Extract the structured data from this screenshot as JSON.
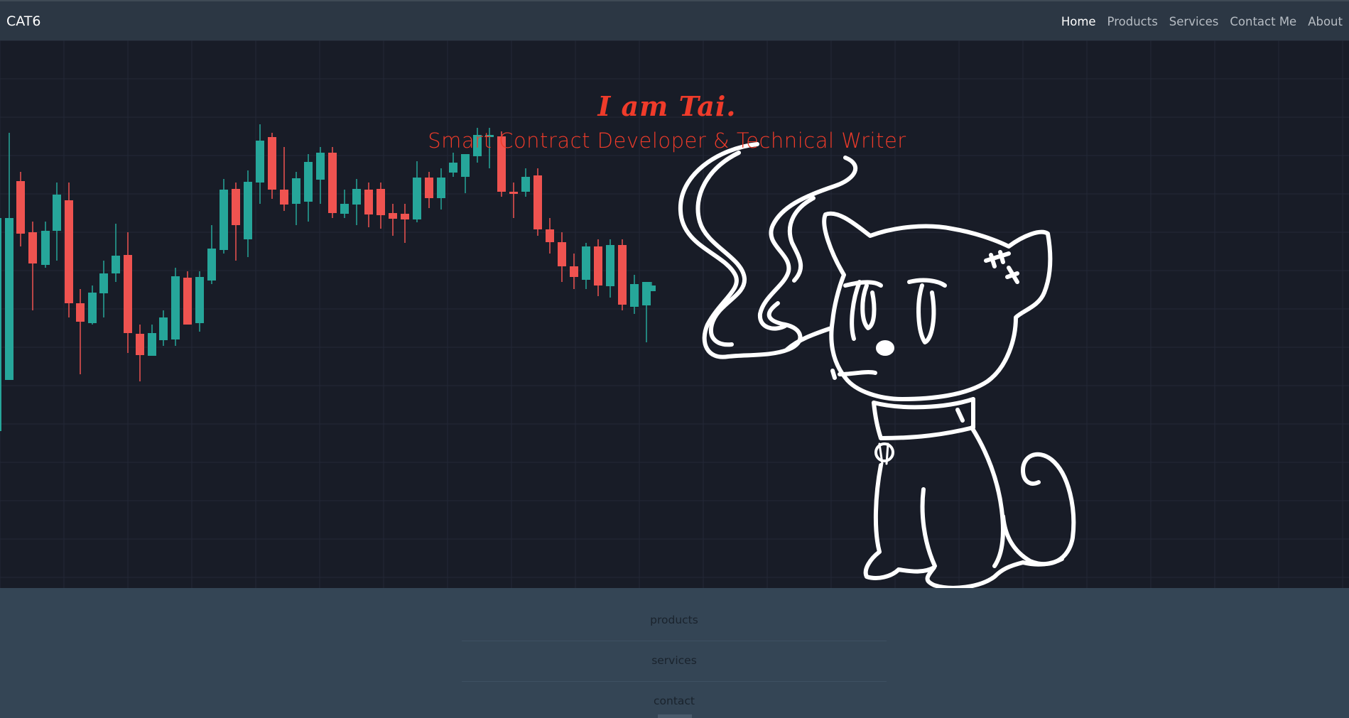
{
  "navbar": {
    "brand": "CAT6",
    "links": [
      {
        "label": "Home",
        "active": true
      },
      {
        "label": "Products",
        "active": false
      },
      {
        "label": "Services",
        "active": false
      },
      {
        "label": "Contact Me",
        "active": false
      },
      {
        "label": "About",
        "active": false
      }
    ]
  },
  "hero": {
    "title": "I am Tai.",
    "subtitle": "Smart Contract Developer & Technical Writer",
    "colors": {
      "up": "#26a69a",
      "down": "#ef5350",
      "background": "#181c27",
      "accent": "#ef3b2a"
    },
    "illustration": "smoking-cat-drawing"
  },
  "footer": {
    "links": [
      "products",
      "services",
      "contact"
    ]
  }
}
